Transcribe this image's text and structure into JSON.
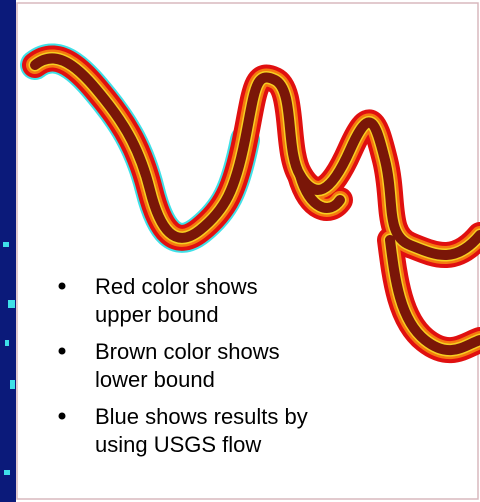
{
  "bullets": [
    {
      "lines": [
        "Red color shows",
        "upper bound"
      ]
    },
    {
      "lines": [
        "Brown color shows",
        "lower bound"
      ]
    },
    {
      "lines": [
        "Blue shows results by",
        "using USGS flow"
      ]
    }
  ]
}
